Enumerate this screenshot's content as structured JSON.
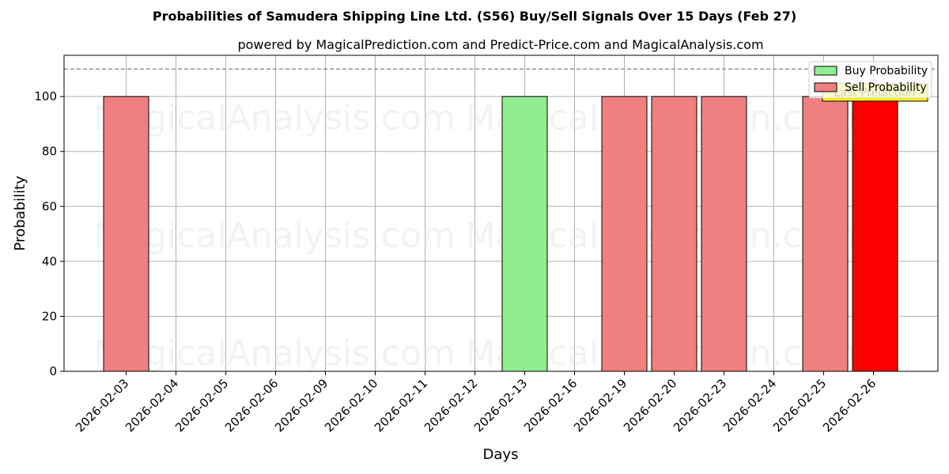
{
  "chart_data": {
    "type": "bar",
    "title": "Probabilities of Samudera Shipping Line Ltd. (S56) Buy/Sell Signals Over 15 Days (Feb 27)",
    "subtitle": "powered by MagicalPrediction.com and Predict-Price.com and MagicalAnalysis.com",
    "xlabel": "Days",
    "ylabel": "Probability",
    "ylim": [
      0,
      115
    ],
    "yticks": [
      0,
      20,
      40,
      60,
      80,
      100
    ],
    "grid": true,
    "threshold_line": 110,
    "legend_position": "top-right",
    "categories": [
      "2026-02-03",
      "2026-02-04",
      "2026-02-05",
      "2026-02-06",
      "2026-02-09",
      "2026-02-10",
      "2026-02-11",
      "2026-02-12",
      "2026-02-13",
      "2026-02-16",
      "2026-02-19",
      "2026-02-20",
      "2026-02-23",
      "2026-02-24",
      "2026-02-25",
      "2026-02-26"
    ],
    "series": [
      {
        "name": "Buy Probability",
        "color": "#90ee90",
        "values": [
          0,
          0,
          0,
          0,
          0,
          0,
          0,
          0,
          100,
          0,
          0,
          0,
          0,
          0,
          0,
          0
        ]
      },
      {
        "name": "Sell Probability",
        "color": "#f08080",
        "values": [
          100,
          0,
          0,
          0,
          0,
          0,
          0,
          0,
          0,
          0,
          100,
          100,
          100,
          0,
          100,
          100
        ]
      }
    ],
    "highlight": {
      "category": "2026-02-26",
      "color": "#ff0000",
      "label": "Last Prediction",
      "label_bg": "#ffff00"
    },
    "watermarks": [
      "MagicalAnalysis.com",
      "MagicalPrediction.com"
    ]
  }
}
